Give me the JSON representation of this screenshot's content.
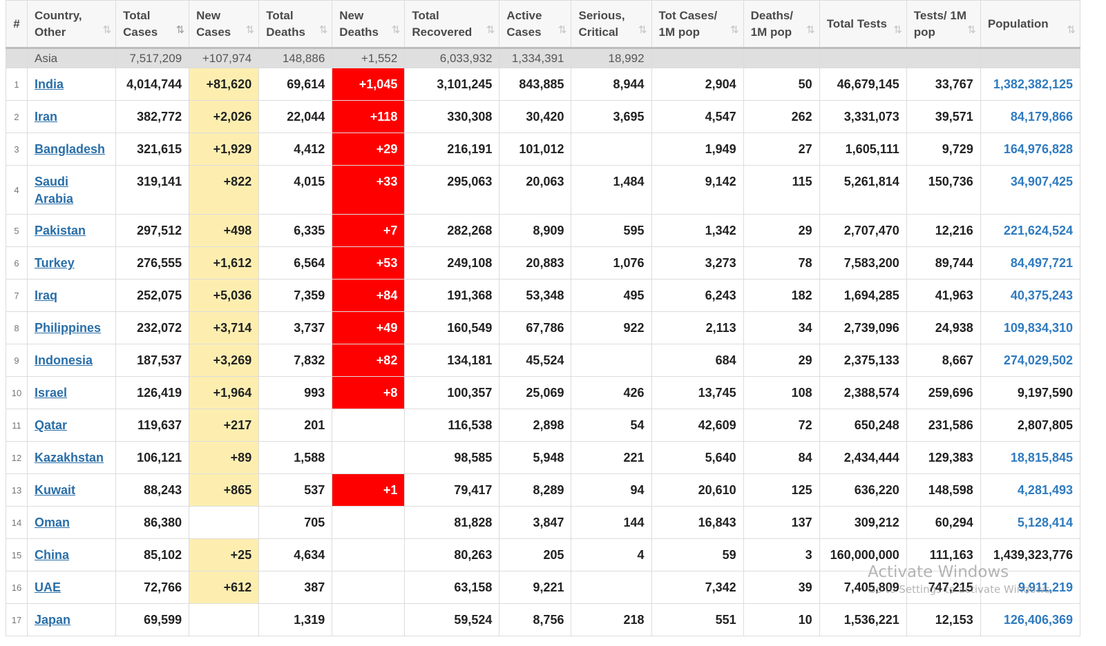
{
  "columns": [
    {
      "key": "rank",
      "label": "#",
      "sortable": false
    },
    {
      "key": "country",
      "label": "Country, Other",
      "sortable": true
    },
    {
      "key": "total_cases",
      "label": "Total Cases",
      "sortable": true,
      "active": true
    },
    {
      "key": "new_cases",
      "label": "New Cases",
      "sortable": true
    },
    {
      "key": "total_deaths",
      "label": "Total Deaths",
      "sortable": true
    },
    {
      "key": "new_deaths",
      "label": "New Deaths",
      "sortable": true
    },
    {
      "key": "total_recovered",
      "label": "Total Recovered",
      "sortable": true
    },
    {
      "key": "active_cases",
      "label": "Active Cases",
      "sortable": true
    },
    {
      "key": "serious",
      "label": "Serious, Critical",
      "sortable": true
    },
    {
      "key": "cases_per_m",
      "label": "Tot Cases/ 1M pop",
      "sortable": true
    },
    {
      "key": "deaths_per_m",
      "label": "Deaths/ 1M pop",
      "sortable": true
    },
    {
      "key": "total_tests",
      "label": "Total Tests",
      "sortable": true
    },
    {
      "key": "tests_per_m",
      "label": "Tests/ 1M pop",
      "sortable": true
    },
    {
      "key": "population",
      "label": "Population",
      "sortable": true
    }
  ],
  "sort_icon": "⇅",
  "region": {
    "name": "Asia",
    "total_cases": "7,517,209",
    "new_cases": "+107,974",
    "total_deaths": "148,886",
    "new_deaths": "+1,552",
    "total_recovered": "6,033,932",
    "active_cases": "1,334,391",
    "serious": "18,992"
  },
  "rows": [
    {
      "rank": "1",
      "country": "India",
      "total_cases": "4,014,744",
      "new_cases": "+81,620",
      "total_deaths": "69,614",
      "new_deaths": "+1,045",
      "total_recovered": "3,101,245",
      "active_cases": "843,885",
      "serious": "8,944",
      "cases_per_m": "2,904",
      "deaths_per_m": "50",
      "total_tests": "46,679,145",
      "tests_per_m": "33,767",
      "population": "1,382,382,125",
      "population_link": true
    },
    {
      "rank": "2",
      "country": "Iran",
      "total_cases": "382,772",
      "new_cases": "+2,026",
      "total_deaths": "22,044",
      "new_deaths": "+118",
      "total_recovered": "330,308",
      "active_cases": "30,420",
      "serious": "3,695",
      "cases_per_m": "4,547",
      "deaths_per_m": "262",
      "total_tests": "3,331,073",
      "tests_per_m": "39,571",
      "population": "84,179,866",
      "population_link": true
    },
    {
      "rank": "3",
      "country": "Bangladesh",
      "total_cases": "321,615",
      "new_cases": "+1,929",
      "total_deaths": "4,412",
      "new_deaths": "+29",
      "total_recovered": "216,191",
      "active_cases": "101,012",
      "serious": "",
      "cases_per_m": "1,949",
      "deaths_per_m": "27",
      "total_tests": "1,605,111",
      "tests_per_m": "9,729",
      "population": "164,976,828",
      "population_link": true
    },
    {
      "rank": "4",
      "country": "Saudi Arabia",
      "total_cases": "319,141",
      "new_cases": "+822",
      "total_deaths": "4,015",
      "new_deaths": "+33",
      "total_recovered": "295,063",
      "active_cases": "20,063",
      "serious": "1,484",
      "cases_per_m": "9,142",
      "deaths_per_m": "115",
      "total_tests": "5,261,814",
      "tests_per_m": "150,736",
      "population": "34,907,425",
      "population_link": true,
      "tall": true
    },
    {
      "rank": "5",
      "country": "Pakistan",
      "total_cases": "297,512",
      "new_cases": "+498",
      "total_deaths": "6,335",
      "new_deaths": "+7",
      "total_recovered": "282,268",
      "active_cases": "8,909",
      "serious": "595",
      "cases_per_m": "1,342",
      "deaths_per_m": "29",
      "total_tests": "2,707,470",
      "tests_per_m": "12,216",
      "population": "221,624,524",
      "population_link": true
    },
    {
      "rank": "6",
      "country": "Turkey",
      "total_cases": "276,555",
      "new_cases": "+1,612",
      "total_deaths": "6,564",
      "new_deaths": "+53",
      "total_recovered": "249,108",
      "active_cases": "20,883",
      "serious": "1,076",
      "cases_per_m": "3,273",
      "deaths_per_m": "78",
      "total_tests": "7,583,200",
      "tests_per_m": "89,744",
      "population": "84,497,721",
      "population_link": true
    },
    {
      "rank": "7",
      "country": "Iraq",
      "total_cases": "252,075",
      "new_cases": "+5,036",
      "total_deaths": "7,359",
      "new_deaths": "+84",
      "total_recovered": "191,368",
      "active_cases": "53,348",
      "serious": "495",
      "cases_per_m": "6,243",
      "deaths_per_m": "182",
      "total_tests": "1,694,285",
      "tests_per_m": "41,963",
      "population": "40,375,243",
      "population_link": true
    },
    {
      "rank": "8",
      "country": "Philippines",
      "total_cases": "232,072",
      "new_cases": "+3,714",
      "total_deaths": "3,737",
      "new_deaths": "+49",
      "total_recovered": "160,549",
      "active_cases": "67,786",
      "serious": "922",
      "cases_per_m": "2,113",
      "deaths_per_m": "34",
      "total_tests": "2,739,096",
      "tests_per_m": "24,938",
      "population": "109,834,310",
      "population_link": true
    },
    {
      "rank": "9",
      "country": "Indonesia",
      "total_cases": "187,537",
      "new_cases": "+3,269",
      "total_deaths": "7,832",
      "new_deaths": "+82",
      "total_recovered": "134,181",
      "active_cases": "45,524",
      "serious": "",
      "cases_per_m": "684",
      "deaths_per_m": "29",
      "total_tests": "2,375,133",
      "tests_per_m": "8,667",
      "population": "274,029,502",
      "population_link": true
    },
    {
      "rank": "10",
      "country": "Israel",
      "total_cases": "126,419",
      "new_cases": "+1,964",
      "total_deaths": "993",
      "new_deaths": "+8",
      "total_recovered": "100,357",
      "active_cases": "25,069",
      "serious": "426",
      "cases_per_m": "13,745",
      "deaths_per_m": "108",
      "total_tests": "2,388,574",
      "tests_per_m": "259,696",
      "population": "9,197,590",
      "population_link": false
    },
    {
      "rank": "11",
      "country": "Qatar",
      "total_cases": "119,637",
      "new_cases": "+217",
      "total_deaths": "201",
      "new_deaths": "",
      "total_recovered": "116,538",
      "active_cases": "2,898",
      "serious": "54",
      "cases_per_m": "42,609",
      "deaths_per_m": "72",
      "total_tests": "650,248",
      "tests_per_m": "231,586",
      "population": "2,807,805",
      "population_link": false
    },
    {
      "rank": "12",
      "country": "Kazakhstan",
      "total_cases": "106,121",
      "new_cases": "+89",
      "total_deaths": "1,588",
      "new_deaths": "",
      "total_recovered": "98,585",
      "active_cases": "5,948",
      "serious": "221",
      "cases_per_m": "5,640",
      "deaths_per_m": "84",
      "total_tests": "2,434,444",
      "tests_per_m": "129,383",
      "population": "18,815,845",
      "population_link": true
    },
    {
      "rank": "13",
      "country": "Kuwait",
      "total_cases": "88,243",
      "new_cases": "+865",
      "total_deaths": "537",
      "new_deaths": "+1",
      "total_recovered": "79,417",
      "active_cases": "8,289",
      "serious": "94",
      "cases_per_m": "20,610",
      "deaths_per_m": "125",
      "total_tests": "636,220",
      "tests_per_m": "148,598",
      "population": "4,281,493",
      "population_link": true
    },
    {
      "rank": "14",
      "country": "Oman",
      "total_cases": "86,380",
      "new_cases": "",
      "total_deaths": "705",
      "new_deaths": "",
      "total_recovered": "81,828",
      "active_cases": "3,847",
      "serious": "144",
      "cases_per_m": "16,843",
      "deaths_per_m": "137",
      "total_tests": "309,212",
      "tests_per_m": "60,294",
      "population": "5,128,414",
      "population_link": true
    },
    {
      "rank": "15",
      "country": "China",
      "total_cases": "85,102",
      "new_cases": "+25",
      "total_deaths": "4,634",
      "new_deaths": "",
      "total_recovered": "80,263",
      "active_cases": "205",
      "serious": "4",
      "cases_per_m": "59",
      "deaths_per_m": "3",
      "total_tests": "160,000,000",
      "tests_per_m": "111,163",
      "population": "1,439,323,776",
      "population_link": false
    },
    {
      "rank": "16",
      "country": "UAE",
      "total_cases": "72,766",
      "new_cases": "+612",
      "total_deaths": "387",
      "new_deaths": "",
      "total_recovered": "63,158",
      "active_cases": "9,221",
      "serious": "",
      "cases_per_m": "7,342",
      "deaths_per_m": "39",
      "total_tests": "7,405,809",
      "tests_per_m": "747,215",
      "population": "9,911,219",
      "population_link": true
    },
    {
      "rank": "17",
      "country": "Japan",
      "total_cases": "69,599",
      "new_cases": "",
      "total_deaths": "1,319",
      "new_deaths": "",
      "total_recovered": "59,524",
      "active_cases": "8,756",
      "serious": "218",
      "cases_per_m": "551",
      "deaths_per_m": "10",
      "total_tests": "1,536,221",
      "tests_per_m": "12,153",
      "population": "126,406,369",
      "population_link": true
    }
  ],
  "watermark": {
    "title": "Activate Windows",
    "subtitle": "Go to Settings to activate Windows."
  },
  "colors": {
    "new_cases_highlight": "#fdeeb0",
    "new_deaths_highlight": "#ff0000",
    "link": "#2a6fa8",
    "population_link": "#2f7bc0"
  }
}
